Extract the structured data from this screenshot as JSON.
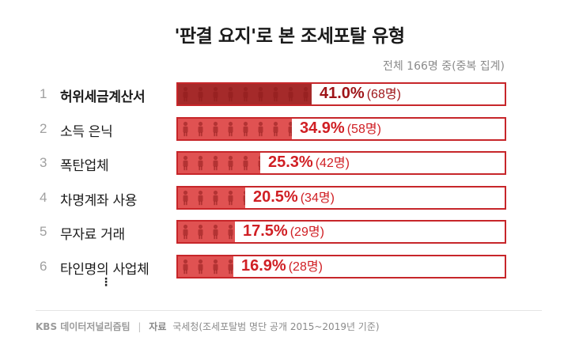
{
  "title": "'판결 요지'로 본 조세포탈 유형",
  "subtitle": "전체 166명 중(중복 집계)",
  "colors": {
    "bar_top": "#a52a2a",
    "bar": "#e05252",
    "border": "#c7262a",
    "text_accent": "#d01f24",
    "text_top": "#9e1418",
    "person_icon": "#8e1a1a"
  },
  "chart_data": {
    "type": "bar",
    "orientation": "horizontal",
    "icon": "person-icon",
    "xlim": [
      0,
      100
    ],
    "categories": [
      "허위세금계산서",
      "소득 은닉",
      "폭탄업체",
      "차명계좌 사용",
      "무자료 거래",
      "타인명의 사업체"
    ],
    "ranks": [
      "1",
      "2",
      "3",
      "4",
      "5",
      "6"
    ],
    "values": [
      41.0,
      34.9,
      25.3,
      20.5,
      17.5,
      16.9
    ],
    "value_labels": [
      "41.0%",
      "34.9%",
      "25.3%",
      "20.5%",
      "17.5%",
      "16.9%"
    ],
    "counts": [
      "(68명)",
      "(58명)",
      "(42명)",
      "(34명)",
      "(29명)",
      "(28명)"
    ]
  },
  "more_indicator": "⋮",
  "footer": {
    "brand": "KBS 데이터저널리즘팀",
    "separator": "|",
    "source_label": "자료",
    "source_text": "국세청(조세포탈범 명단 공개 2015~2019년 기준)"
  }
}
